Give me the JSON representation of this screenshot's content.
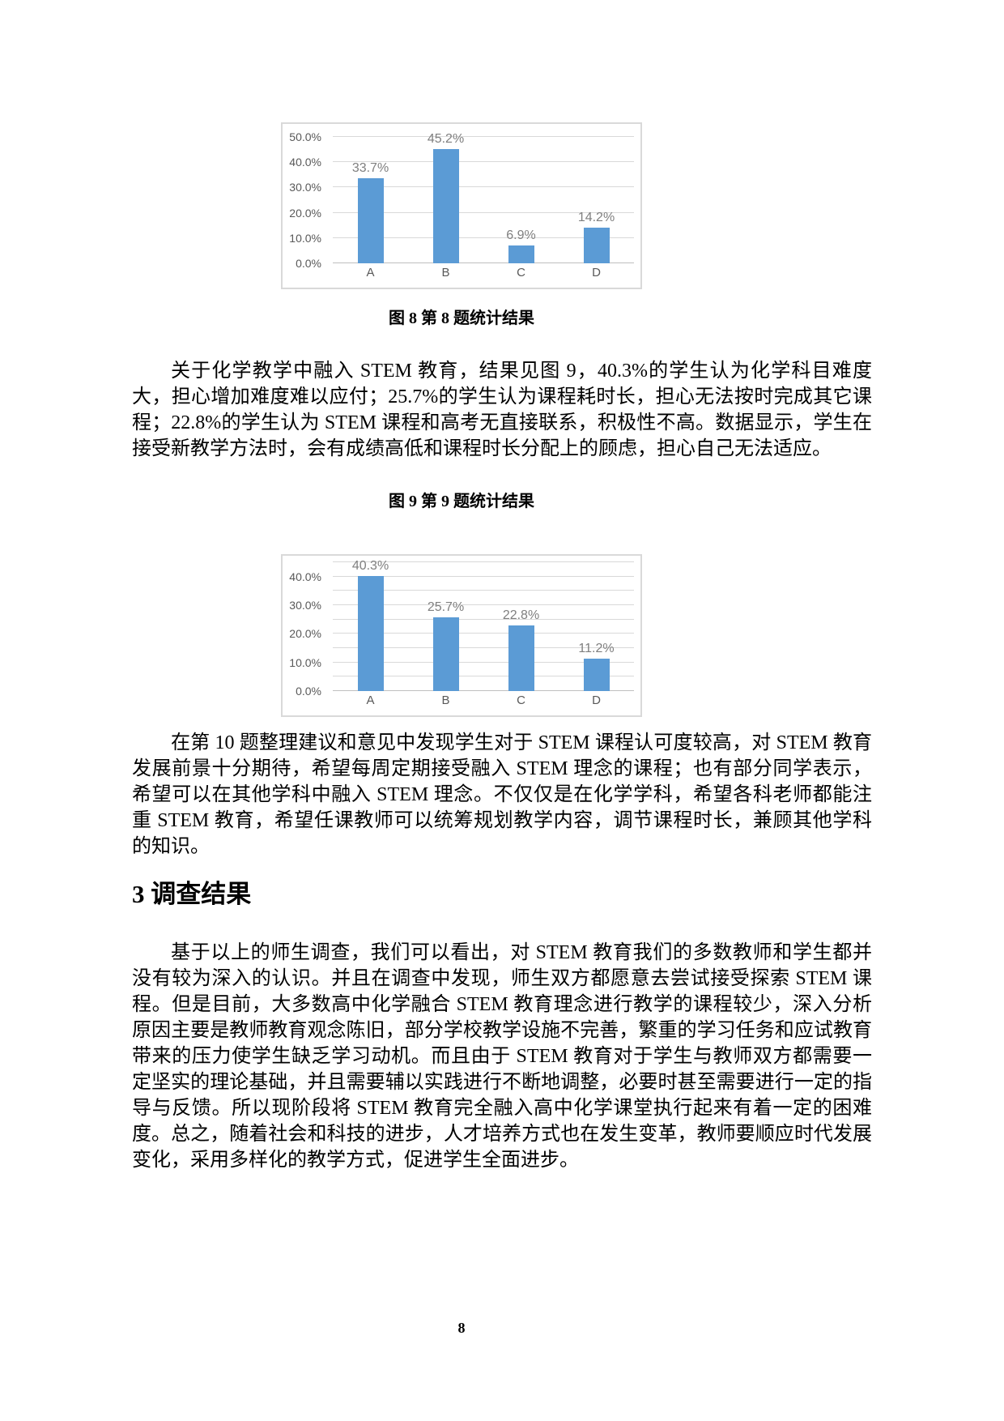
{
  "figures": {
    "fig8_caption": "图 8 第 8 题统计结果",
    "fig9_caption": "图 9 第 9 题统计结果"
  },
  "paragraphs": {
    "p1": "关于化学教学中融入 STEM 教育，结果见图 9，40.3%的学生认为化学科目难度大，担心增加难度难以应付；25.7%的学生认为课程耗时长，担心无法按时完成其它课程；22.8%的学生认为 STEM 课程和高考无直接联系，积极性不高。数据显示，学生在接受新教学方法时，会有成绩高低和课程时长分配上的顾虑，担心自己无法适应。",
    "p2": "在第 10 题整理建议和意见中发现学生对于 STEM 课程认可度较高，对 STEM 教育发展前景十分期待，希望每周定期接受融入 STEM 理念的课程；也有部分同学表示，希望可以在其他学科中融入 STEM 理念。不仅仅是在化学学科，希望各科老师都能注重 STEM 教育，希望任课教师可以统筹规划教学内容，调节课程时长，兼顾其他学科的知识。",
    "p3": "基于以上的师生调查，我们可以看出，对 STEM 教育我们的多数教师和学生都并没有较为深入的认识。并且在调查中发现，师生双方都愿意去尝试接受探索 STEM 课程。但是目前，大多数高中化学融合 STEM 教育理念进行教学的课程较少，深入分析原因主要是教师教育观念陈旧，部分学校教学设施不完善，繁重的学习任务和应试教育带来的压力使学生缺乏学习动机。而且由于 STEM 教育对于学生与教师双方都需要一定坚实的理论基础，并且需要辅以实践进行不断地调整，必要时甚至需要进行一定的指导与反馈。所以现阶段将 STEM 教育完全融入高中化学课堂执行起来有着一定的困难度。总之，随着社会和科技的进步，人才培养方式也在发生变革，教师要顺应时代发展变化，采用多样化的教学方式，促进学生全面进步。"
  },
  "section": {
    "heading": "3 调查结果"
  },
  "footer": {
    "page_number": "8"
  },
  "colors": {
    "bar_blue": "#5b9bd5",
    "gridline": "#d9d9d9",
    "axis_label_gray": "#595959",
    "data_label_gray": "#7f7f7f"
  },
  "chart_data": [
    {
      "type": "bar",
      "title": "图 8 第 8 题统计结果",
      "categories": [
        "A",
        "B",
        "C",
        "D"
      ],
      "values": [
        33.7,
        45.2,
        6.9,
        14.2
      ],
      "data_labels": [
        "33.7%",
        "45.2%",
        "6.9%",
        "14.2%"
      ],
      "xlabel": "",
      "ylabel": "",
      "ylim": [
        0,
        50
      ],
      "grid_step": 10,
      "grid": true,
      "legend": false,
      "bar_color": "#5b9bd5",
      "ticks": [
        {
          "value": 0,
          "label": "0.0%"
        },
        {
          "value": 10,
          "label": "10.0%"
        },
        {
          "value": 20,
          "label": "20.0%"
        },
        {
          "value": 30,
          "label": "30.0%"
        },
        {
          "value": 40,
          "label": "40.0%"
        },
        {
          "value": 50,
          "label": "50.0%"
        }
      ]
    },
    {
      "type": "bar",
      "title": "图 9 第 9 题统计结果",
      "categories": [
        "A",
        "B",
        "C",
        "D"
      ],
      "values": [
        40.3,
        25.7,
        22.8,
        11.2
      ],
      "data_labels": [
        "40.3%",
        "25.7%",
        "22.8%",
        "11.2%"
      ],
      "xlabel": "",
      "ylabel": "",
      "ylim": [
        0,
        45
      ],
      "grid_step": 5,
      "grid": true,
      "legend": false,
      "bar_color": "#5b9bd5",
      "ticks": [
        {
          "value": 0,
          "label": "0.0%"
        },
        {
          "value": 10,
          "label": "10.0%"
        },
        {
          "value": 20,
          "label": "20.0%"
        },
        {
          "value": 30,
          "label": "30.0%"
        },
        {
          "value": 40,
          "label": "40.0%"
        }
      ]
    }
  ]
}
